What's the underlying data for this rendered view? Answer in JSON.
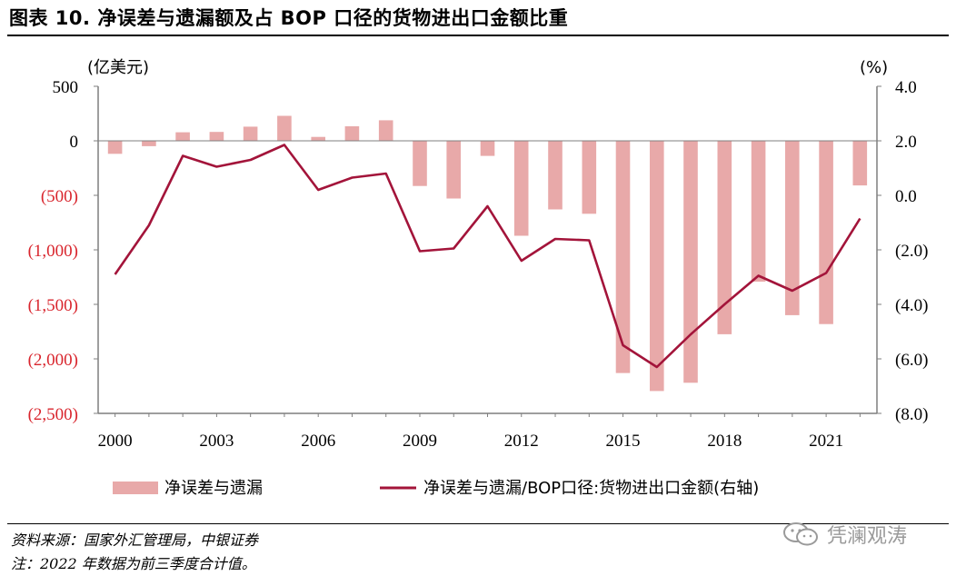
{
  "title": "图表 10. 净误差与遗漏额及占 BOP 口径的货物进出口金额比重",
  "source": "资料来源：国家外汇管理局，中银证券",
  "note": "注：2022 年数据为前三季度合计值。",
  "watermark": "凭澜观涛",
  "colors": {
    "bar": "#e8a9a9",
    "line": "#a3143a",
    "negative_label": "#d9262e",
    "axis": "#7f7f7f"
  },
  "chart_data": {
    "type": "bar+line",
    "left_axis": {
      "label": "(亿美元)",
      "ylim": [
        -2500,
        500
      ],
      "ticks": [
        500,
        0,
        -500,
        -1000,
        -1500,
        -2000,
        -2500
      ],
      "tick_labels": [
        "500",
        "0",
        "(500)",
        "(1,000)",
        "(1,500)",
        "(2,000)",
        "(2,500)"
      ]
    },
    "right_axis": {
      "label": "(%)",
      "ylim": [
        -8,
        4
      ],
      "ticks": [
        4,
        2,
        0,
        -2,
        -4,
        -6,
        -8
      ],
      "tick_labels": [
        "4.0",
        "2.0",
        "0.0",
        "(2.0)",
        "(4.0)",
        "(6.0)",
        "(8.0)"
      ]
    },
    "x": [
      2000,
      2001,
      2002,
      2003,
      2004,
      2005,
      2006,
      2007,
      2008,
      2009,
      2010,
      2011,
      2012,
      2013,
      2014,
      2015,
      2016,
      2017,
      2018,
      2019,
      2020,
      2021,
      2022
    ],
    "x_tick_labels": [
      "2000",
      "2003",
      "2006",
      "2009",
      "2012",
      "2015",
      "2018",
      "2021"
    ],
    "series": [
      {
        "name": "净误差与遗漏",
        "type": "bar",
        "axis": "left",
        "values": [
          -119,
          -49,
          78,
          82,
          130,
          229,
          36,
          133,
          188,
          -414,
          -529,
          -138,
          -871,
          -629,
          -669,
          -2130,
          -2295,
          -2219,
          -1774,
          -1292,
          -1599,
          -1681,
          -409
        ]
      },
      {
        "name": "净误差与遗漏/BOP口径:货物进出口金额(右轴)",
        "type": "line",
        "axis": "right",
        "values": [
          -2.9,
          -1.1,
          1.45,
          1.05,
          1.3,
          1.85,
          0.2,
          0.65,
          0.8,
          -2.05,
          -1.95,
          -0.4,
          -2.4,
          -1.6,
          -1.65,
          -5.5,
          -6.3,
          -5.1,
          -4.0,
          -2.95,
          -3.5,
          -2.85,
          -0.85
        ]
      }
    ],
    "legend": [
      "净误差与遗漏",
      "净误差与遗漏/BOP口径:货物进出口金额(右轴)"
    ]
  }
}
